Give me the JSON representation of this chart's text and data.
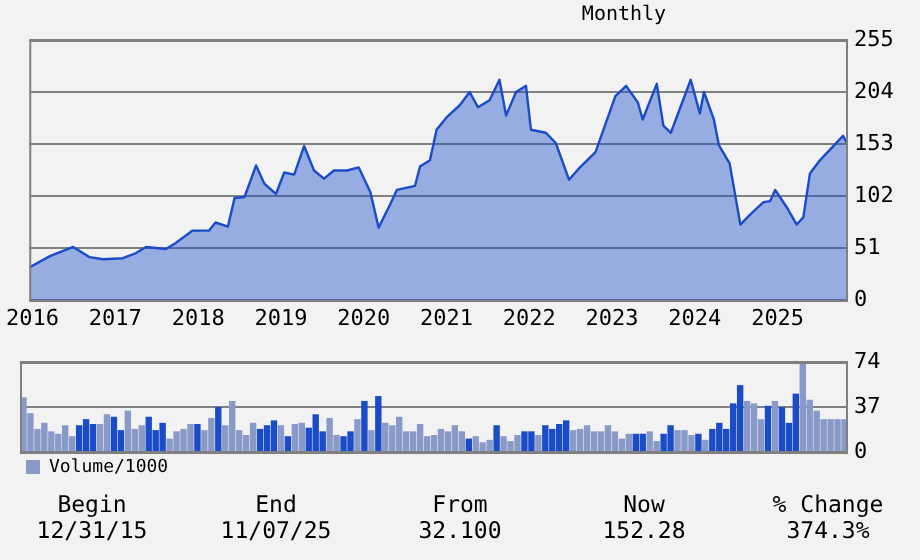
{
  "chart_data": [
    {
      "type": "area",
      "subtitle": "Monthly",
      "x": [
        2015.96,
        2016.21,
        2016.49,
        2016.69,
        2016.85,
        2017.09,
        2017.25,
        2017.37,
        2017.61,
        2017.73,
        2017.93,
        2018.13,
        2018.21,
        2018.36,
        2018.44,
        2018.56,
        2018.7,
        2018.8,
        2018.94,
        2019.04,
        2019.16,
        2019.28,
        2019.4,
        2019.52,
        2019.64,
        2019.8,
        2019.94,
        2020.08,
        2020.18,
        2020.32,
        2020.4,
        2020.62,
        2020.68,
        2020.8,
        2020.88,
        2021.0,
        2021.16,
        2021.28,
        2021.38,
        2021.52,
        2021.64,
        2021.72,
        2021.84,
        2021.96,
        2022.02,
        2022.2,
        2022.32,
        2022.48,
        2022.6,
        2022.8,
        2023.04,
        2023.17,
        2023.31,
        2023.37,
        2023.54,
        2023.62,
        2023.71,
        2023.95,
        2024.06,
        2024.11,
        2024.23,
        2024.29,
        2024.42,
        2024.55,
        2024.67,
        2024.83,
        2024.91,
        2024.97,
        2025.11,
        2025.23,
        2025.31,
        2025.39,
        2025.51,
        2025.79,
        2025.85
      ],
      "series": [
        {
          "color": "#1a4cc8",
          "values": [
            32,
            43,
            52,
            42,
            40,
            41,
            46,
            52,
            50,
            56,
            68,
            68,
            76,
            72,
            100,
            101,
            132,
            114,
            104,
            125,
            123,
            151,
            127,
            119,
            127,
            127,
            130,
            106,
            71,
            94,
            108,
            112,
            131,
            137,
            167,
            179,
            191,
            204,
            189,
            196,
            216,
            181,
            204,
            210,
            167,
            164,
            154,
            118,
            129,
            145,
            200,
            210,
            194,
            177,
            212,
            171,
            164,
            216,
            183,
            204,
            177,
            152,
            134,
            74,
            84,
            96,
            97,
            108,
            91,
            74,
            81,
            124,
            137,
            161,
            152
          ]
        }
      ],
      "xlim": [
        2015.96,
        2025.85
      ],
      "xticks": [
        2016,
        2017,
        2018,
        2019,
        2020,
        2021,
        2022,
        2023,
        2024,
        2025
      ],
      "ylim": [
        0,
        255
      ],
      "yticks": [
        0,
        51,
        102,
        153,
        204,
        255
      ],
      "grid": "y"
    },
    {
      "type": "bar",
      "categories": [
        null,
        null,
        null,
        null,
        null,
        null,
        null,
        null,
        null,
        null,
        null,
        null,
        null,
        null,
        null,
        null,
        null,
        null,
        null,
        null,
        null,
        null,
        null,
        null,
        null,
        null,
        null,
        null,
        null,
        null,
        null,
        null,
        null,
        null,
        null,
        null,
        null,
        null,
        null,
        null,
        null,
        null,
        null,
        null,
        null,
        null,
        null,
        null,
        null,
        null,
        null,
        null,
        null,
        null,
        null,
        null,
        null,
        null,
        null,
        null,
        null,
        null,
        null,
        null,
        null,
        null,
        null,
        null,
        null,
        null,
        null,
        null,
        null,
        null,
        null,
        null,
        null,
        null,
        null,
        null,
        null,
        null,
        null,
        null,
        null,
        null,
        null,
        null,
        null,
        null,
        null,
        null,
        null,
        null,
        null,
        null,
        null,
        null,
        null,
        null,
        null,
        null,
        null,
        null,
        null,
        null,
        null,
        null,
        null,
        null,
        null,
        null,
        null,
        null,
        null,
        null,
        null,
        null,
        null
      ],
      "series": [
        {
          "name": "Volume/1000",
          "color": "#8a9ac8",
          "values": [
            45,
            32,
            19,
            24,
            17,
            15,
            22,
            13,
            22,
            27,
            23,
            23,
            31,
            29,
            18,
            34,
            19,
            22,
            29,
            18,
            24,
            11,
            17,
            19,
            23,
            23,
            18,
            28,
            37,
            22,
            42,
            18,
            14,
            24,
            19,
            22,
            26,
            22,
            13,
            23,
            24,
            20,
            31,
            17,
            28,
            14,
            13,
            17,
            27,
            42,
            18,
            46,
            24,
            22,
            29,
            17,
            17,
            23,
            13,
            14,
            19,
            17,
            22,
            17,
            11,
            13,
            8,
            10,
            22,
            13,
            9,
            14,
            17,
            17,
            14,
            22,
            19,
            23,
            26,
            18,
            19,
            22,
            17,
            17,
            22,
            17,
            11,
            15,
            15,
            15,
            17,
            9,
            15,
            22,
            18,
            18,
            14,
            15,
            10,
            19,
            24,
            19,
            40,
            55,
            42,
            40,
            27,
            38,
            42,
            37,
            24,
            48,
            73,
            43,
            34,
            27,
            27,
            27,
            27
          ],
          "colors": [
            "#8a9ac8",
            "#8a9ac8",
            "#8a9ac8",
            "#8a9ac8",
            "#8a9ac8",
            "#8a9ac8",
            "#8a9ac8",
            "#8a9ac8",
            "#1a4cc8",
            "#1a4cc8",
            "#1a4cc8",
            "#8a9ac8",
            "#8a9ac8",
            "#1a4cc8",
            "#1a4cc8",
            "#8a9ac8",
            "#8a9ac8",
            "#8a9ac8",
            "#1a4cc8",
            "#1a4cc8",
            "#1a4cc8",
            "#8a9ac8",
            "#8a9ac8",
            "#8a9ac8",
            "#8a9ac8",
            "#1a4cc8",
            "#8a9ac8",
            "#8a9ac8",
            "#1a4cc8",
            "#8a9ac8",
            "#8a9ac8",
            "#8a9ac8",
            "#8a9ac8",
            "#8a9ac8",
            "#1a4cc8",
            "#1a4cc8",
            "#1a4cc8",
            "#8a9ac8",
            "#1a4cc8",
            "#8a9ac8",
            "#8a9ac8",
            "#1a4cc8",
            "#1a4cc8",
            "#1a4cc8",
            "#8a9ac8",
            "#8a9ac8",
            "#1a4cc8",
            "#1a4cc8",
            "#8a9ac8",
            "#1a4cc8",
            "#8a9ac8",
            "#1a4cc8",
            "#8a9ac8",
            "#8a9ac8",
            "#8a9ac8",
            "#8a9ac8",
            "#8a9ac8",
            "#8a9ac8",
            "#8a9ac8",
            "#8a9ac8",
            "#8a9ac8",
            "#8a9ac8",
            "#8a9ac8",
            "#8a9ac8",
            "#1a4cc8",
            "#8a9ac8",
            "#8a9ac8",
            "#8a9ac8",
            "#1a4cc8",
            "#8a9ac8",
            "#8a9ac8",
            "#8a9ac8",
            "#1a4cc8",
            "#1a4cc8",
            "#8a9ac8",
            "#1a4cc8",
            "#1a4cc8",
            "#1a4cc8",
            "#1a4cc8",
            "#8a9ac8",
            "#8a9ac8",
            "#8a9ac8",
            "#8a9ac8",
            "#8a9ac8",
            "#8a9ac8",
            "#8a9ac8",
            "#8a9ac8",
            "#8a9ac8",
            "#1a4cc8",
            "#1a4cc8",
            "#8a9ac8",
            "#8a9ac8",
            "#1a4cc8",
            "#1a4cc8",
            "#8a9ac8",
            "#8a9ac8",
            "#8a9ac8",
            "#1a4cc8",
            "#8a9ac8",
            "#1a4cc8",
            "#1a4cc8",
            "#1a4cc8",
            "#1a4cc8",
            "#1a4cc8",
            "#8a9ac8",
            "#8a9ac8",
            "#8a9ac8",
            "#1a4cc8",
            "#8a9ac8",
            "#1a4cc8",
            "#1a4cc8",
            "#1a4cc8",
            "#8a9ac8",
            "#8a9ac8",
            "#8a9ac8",
            "#8a9ac8",
            "#8a9ac8",
            "#8a9ac8",
            "#8a9ac8"
          ]
        }
      ],
      "ylim": [
        0,
        74
      ],
      "yticks": [
        0,
        37,
        74
      ],
      "grid": "y",
      "tick_labels": "y",
      "legend": "bottom left",
      "annotations": [
        "Begin",
        "12/31/15",
        "End",
        "11/07/25",
        "From",
        "32.100",
        "Now",
        "152.28",
        "% Change",
        "374.3%"
      ]
    }
  ]
}
